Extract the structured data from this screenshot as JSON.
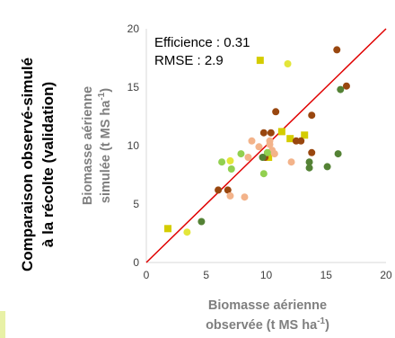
{
  "panel_title": {
    "line1": "Comparaison observé-simulé",
    "line2": "à la récolte (validation)"
  },
  "colors": {
    "yellow": "#d4cc00",
    "light_yellow": "#e3e63a",
    "dark_brown": "#99470f",
    "peach": "#f3b38a",
    "light_green": "#92d050",
    "dark_green": "#548235",
    "line": "#e00000"
  },
  "chart_data": {
    "type": "scatter",
    "title": "",
    "xlabel_line1": "Biomasse aérienne",
    "xlabel_line2_main": "observée (t MS ha",
    "xlabel_line2_sup": "-1",
    "xlabel_line2_end": ")",
    "ylabel_line1": "Biomasse aérienne",
    "ylabel_line2_main": "simulée (t MS ha",
    "ylabel_line2_sup": "-1",
    "ylabel_line2_end": ")",
    "xlim": [
      0,
      20
    ],
    "ylim": [
      0,
      20
    ],
    "x_ticks": [
      "0",
      "5",
      "10",
      "15",
      "20"
    ],
    "y_ticks": [
      "0",
      "5",
      "10",
      "15",
      "20"
    ],
    "grid": false,
    "annotations": {
      "efficience": "Efficience : 0.31",
      "rmse": "RMSE : 2.9"
    },
    "reference_line": {
      "from": [
        0,
        0
      ],
      "to": [
        20,
        20
      ]
    },
    "series": [
      {
        "color_key": "yellow",
        "marker": "square",
        "points": [
          [
            1.8,
            2.9
          ],
          [
            9.5,
            17.3
          ],
          [
            11.3,
            11.2
          ],
          [
            12.0,
            10.6
          ],
          [
            13.2,
            10.9
          ],
          [
            10.2,
            9.0
          ]
        ]
      },
      {
        "color_key": "light_yellow",
        "marker": "circle",
        "points": [
          [
            3.4,
            2.6
          ],
          [
            7.0,
            8.7
          ],
          [
            11.8,
            17.0
          ]
        ]
      },
      {
        "color_key": "dark_brown",
        "marker": "circle",
        "points": [
          [
            6.0,
            6.2
          ],
          [
            6.8,
            6.2
          ],
          [
            9.8,
            11.1
          ],
          [
            10.4,
            11.1
          ],
          [
            10.8,
            12.9
          ],
          [
            12.5,
            10.4
          ],
          [
            12.9,
            10.4
          ],
          [
            13.8,
            9.4
          ],
          [
            13.8,
            12.6
          ],
          [
            15.9,
            18.2
          ],
          [
            16.7,
            15.1
          ],
          [
            9.9,
            9.0
          ]
        ]
      },
      {
        "color_key": "peach",
        "marker": "circle",
        "points": [
          [
            7.0,
            5.7
          ],
          [
            8.2,
            5.6
          ],
          [
            8.5,
            9.0
          ],
          [
            8.8,
            10.4
          ],
          [
            9.4,
            9.9
          ],
          [
            10.3,
            10.1
          ],
          [
            10.3,
            10.4
          ],
          [
            10.7,
            9.3
          ],
          [
            12.1,
            8.6
          ],
          [
            10.5,
            9.6
          ]
        ]
      },
      {
        "color_key": "light_green",
        "marker": "circle",
        "points": [
          [
            6.3,
            8.6
          ],
          [
            7.1,
            8.0
          ],
          [
            7.9,
            9.3
          ],
          [
            9.8,
            7.6
          ],
          [
            10.1,
            9.4
          ]
        ]
      },
      {
        "color_key": "dark_green",
        "marker": "circle",
        "points": [
          [
            4.6,
            3.5
          ],
          [
            9.7,
            9.0
          ],
          [
            13.6,
            8.1
          ],
          [
            13.6,
            8.6
          ],
          [
            15.1,
            8.2
          ],
          [
            16.0,
            9.3
          ],
          [
            16.2,
            14.8
          ]
        ]
      }
    ]
  }
}
